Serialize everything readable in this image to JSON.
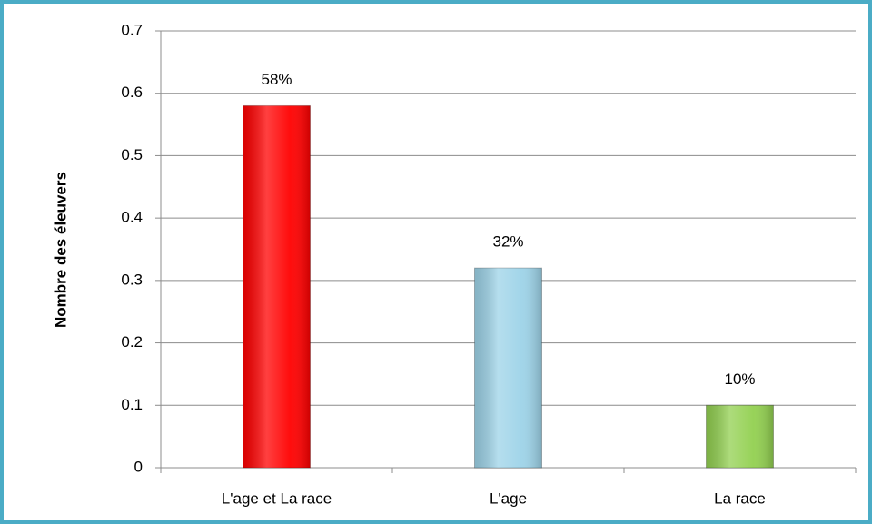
{
  "chart_data": {
    "type": "bar",
    "y_label": "Nombre des éleuvers",
    "categories": [
      "L'age et La race",
      "L'age",
      "La race"
    ],
    "values": [
      0.58,
      0.32,
      0.1
    ],
    "value_labels": [
      "58%",
      "32%",
      "10%"
    ],
    "colors": [
      "#ff0000",
      "#9dd3e8",
      "#92d050"
    ],
    "ylim": [
      0,
      0.7
    ],
    "yticks": [
      0,
      0.1,
      0.2,
      0.3,
      0.4,
      0.5,
      0.6,
      0.7
    ],
    "grid": true
  }
}
